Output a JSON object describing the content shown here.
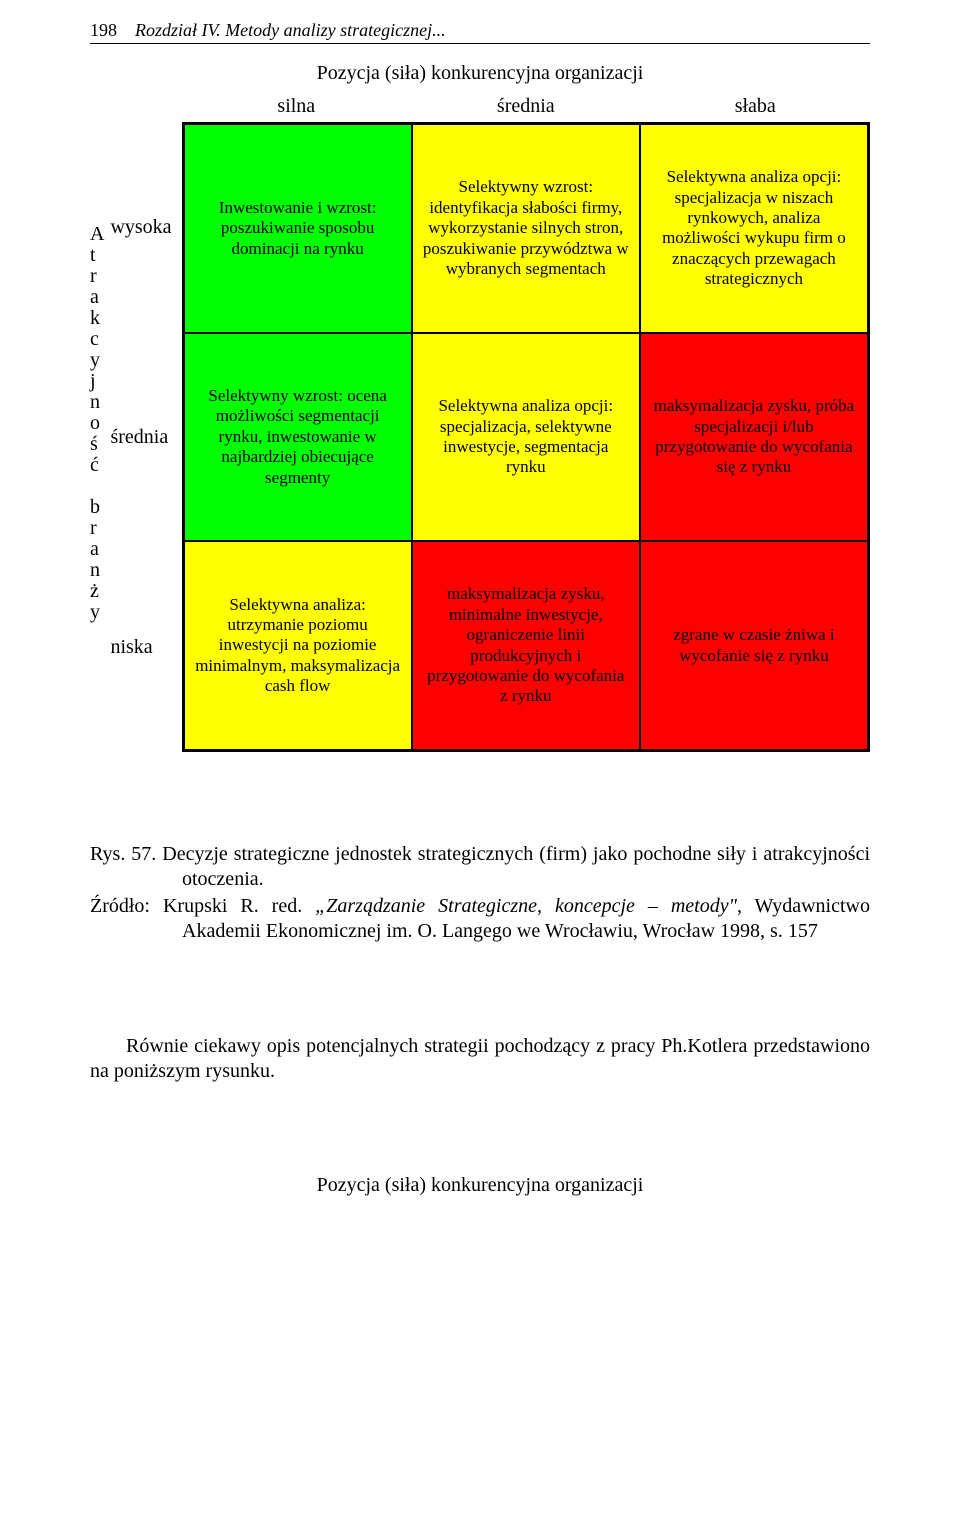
{
  "page": {
    "number": "198",
    "chapter": "Rozdział IV. Metody analizy strategicznej..."
  },
  "chart": {
    "title": "Pozycja (siła) konkurencyjna organizacji",
    "y_axis_letters": [
      "A",
      "t",
      "r",
      "a",
      "k",
      "c",
      "y",
      "j",
      "n",
      "o",
      "ś",
      "ć",
      "",
      "b",
      "r",
      "a",
      "n",
      "ż",
      "y"
    ],
    "row_labels": [
      "wysoka",
      "średnia",
      "niska"
    ],
    "col_labels": [
      "silna",
      "średnia",
      "słaba"
    ],
    "colors": {
      "green": "#00ff00",
      "yellow": "#ffff00",
      "red": "#ff0000",
      "border": "#000000"
    },
    "cells": [
      [
        {
          "text": "Inwestowanie i wzrost: poszukiwanie sposobu dominacji na rynku",
          "bg": "#00ff00"
        },
        {
          "text": "Selektywny wzrost: identyfikacja słabości firmy, wykorzystanie silnych stron, poszukiwanie przywództwa w wybranych segmentach",
          "bg": "#ffff00"
        },
        {
          "text": "Selektywna analiza opcji: specjalizacja w niszach rynkowych, analiza możliwości wykupu firm o znaczących przewagach strategicznych",
          "bg": "#ffff00"
        }
      ],
      [
        {
          "text": "Selektywny wzrost: ocena możliwości segmentacji rynku, inwestowanie w najbardziej obiecujące segmenty",
          "bg": "#00ff00"
        },
        {
          "text": "Selektywna analiza opcji: specjalizacja, selektywne inwestycje, segmentacja rynku",
          "bg": "#ffff00"
        },
        {
          "text": "maksymalizacja zysku, próba specjalizacji i/lub przygotowanie do wycofania się z rynku",
          "bg": "#ff0000"
        }
      ],
      [
        {
          "text": "Selektywna analiza: utrzymanie poziomu inwestycji na poziomie minimalnym, maksymalizacja cash flow",
          "bg": "#ffff00"
        },
        {
          "text": "maksymalizacja zysku, minimalne inwestycje, ograniczenie linii produkcyjnych i przygotowanie do wycofania z rynku",
          "bg": "#ff0000"
        },
        {
          "text": "zgrane w czasie żniwa i wycofanie się z rynku",
          "bg": "#ff0000"
        }
      ]
    ]
  },
  "figure_caption": {
    "label": "Rys. 57.",
    "text": "Decyzje strategiczne jednostek strategicznych (firm) jako pochodne siły i atrakcyjności otoczenia."
  },
  "source": {
    "label": "Źródło:",
    "text_before_italic": "Krupski R. red. ",
    "italic": "„Zarządzanie Strategiczne, koncepcje – metody\"",
    "text_after_italic": ", Wydawnictwo Akademii Ekonomicznej im. O. Langego we Wrocławiu, Wrocław 1998, s. 157"
  },
  "paragraph": "Równie ciekawy opis potencjalnych strategii pochodzący z pracy Ph.Kotlera przedstawiono na poniższym rysunku.",
  "bottom_title": "Pozycja (siła) konkurencyjna organizacji"
}
